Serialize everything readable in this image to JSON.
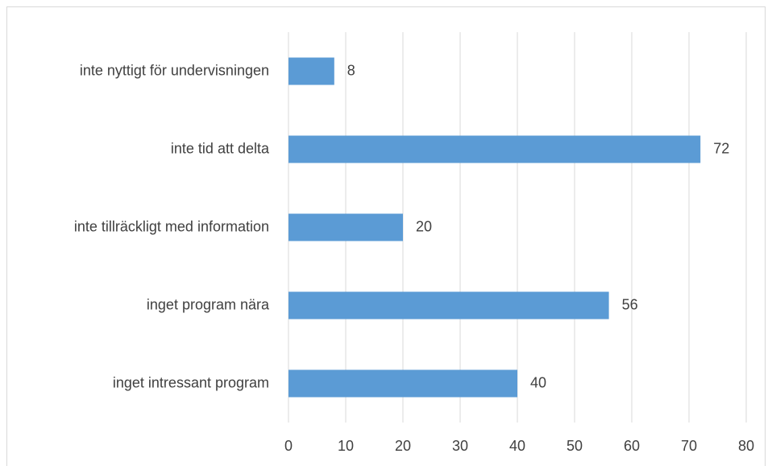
{
  "chart_data": {
    "type": "bar",
    "orientation": "horizontal",
    "categories": [
      "inte nyttigt för undervisningen",
      "inte tid att delta",
      "inte tillräckligt med information",
      "inget program nära",
      "inget intressant program"
    ],
    "values": [
      8,
      72,
      20,
      56,
      40
    ],
    "color": "#5b9bd5",
    "xlim": [
      0,
      80
    ],
    "xticks": [
      0,
      10,
      20,
      30,
      40,
      50,
      60,
      70,
      80
    ],
    "grid": true
  }
}
